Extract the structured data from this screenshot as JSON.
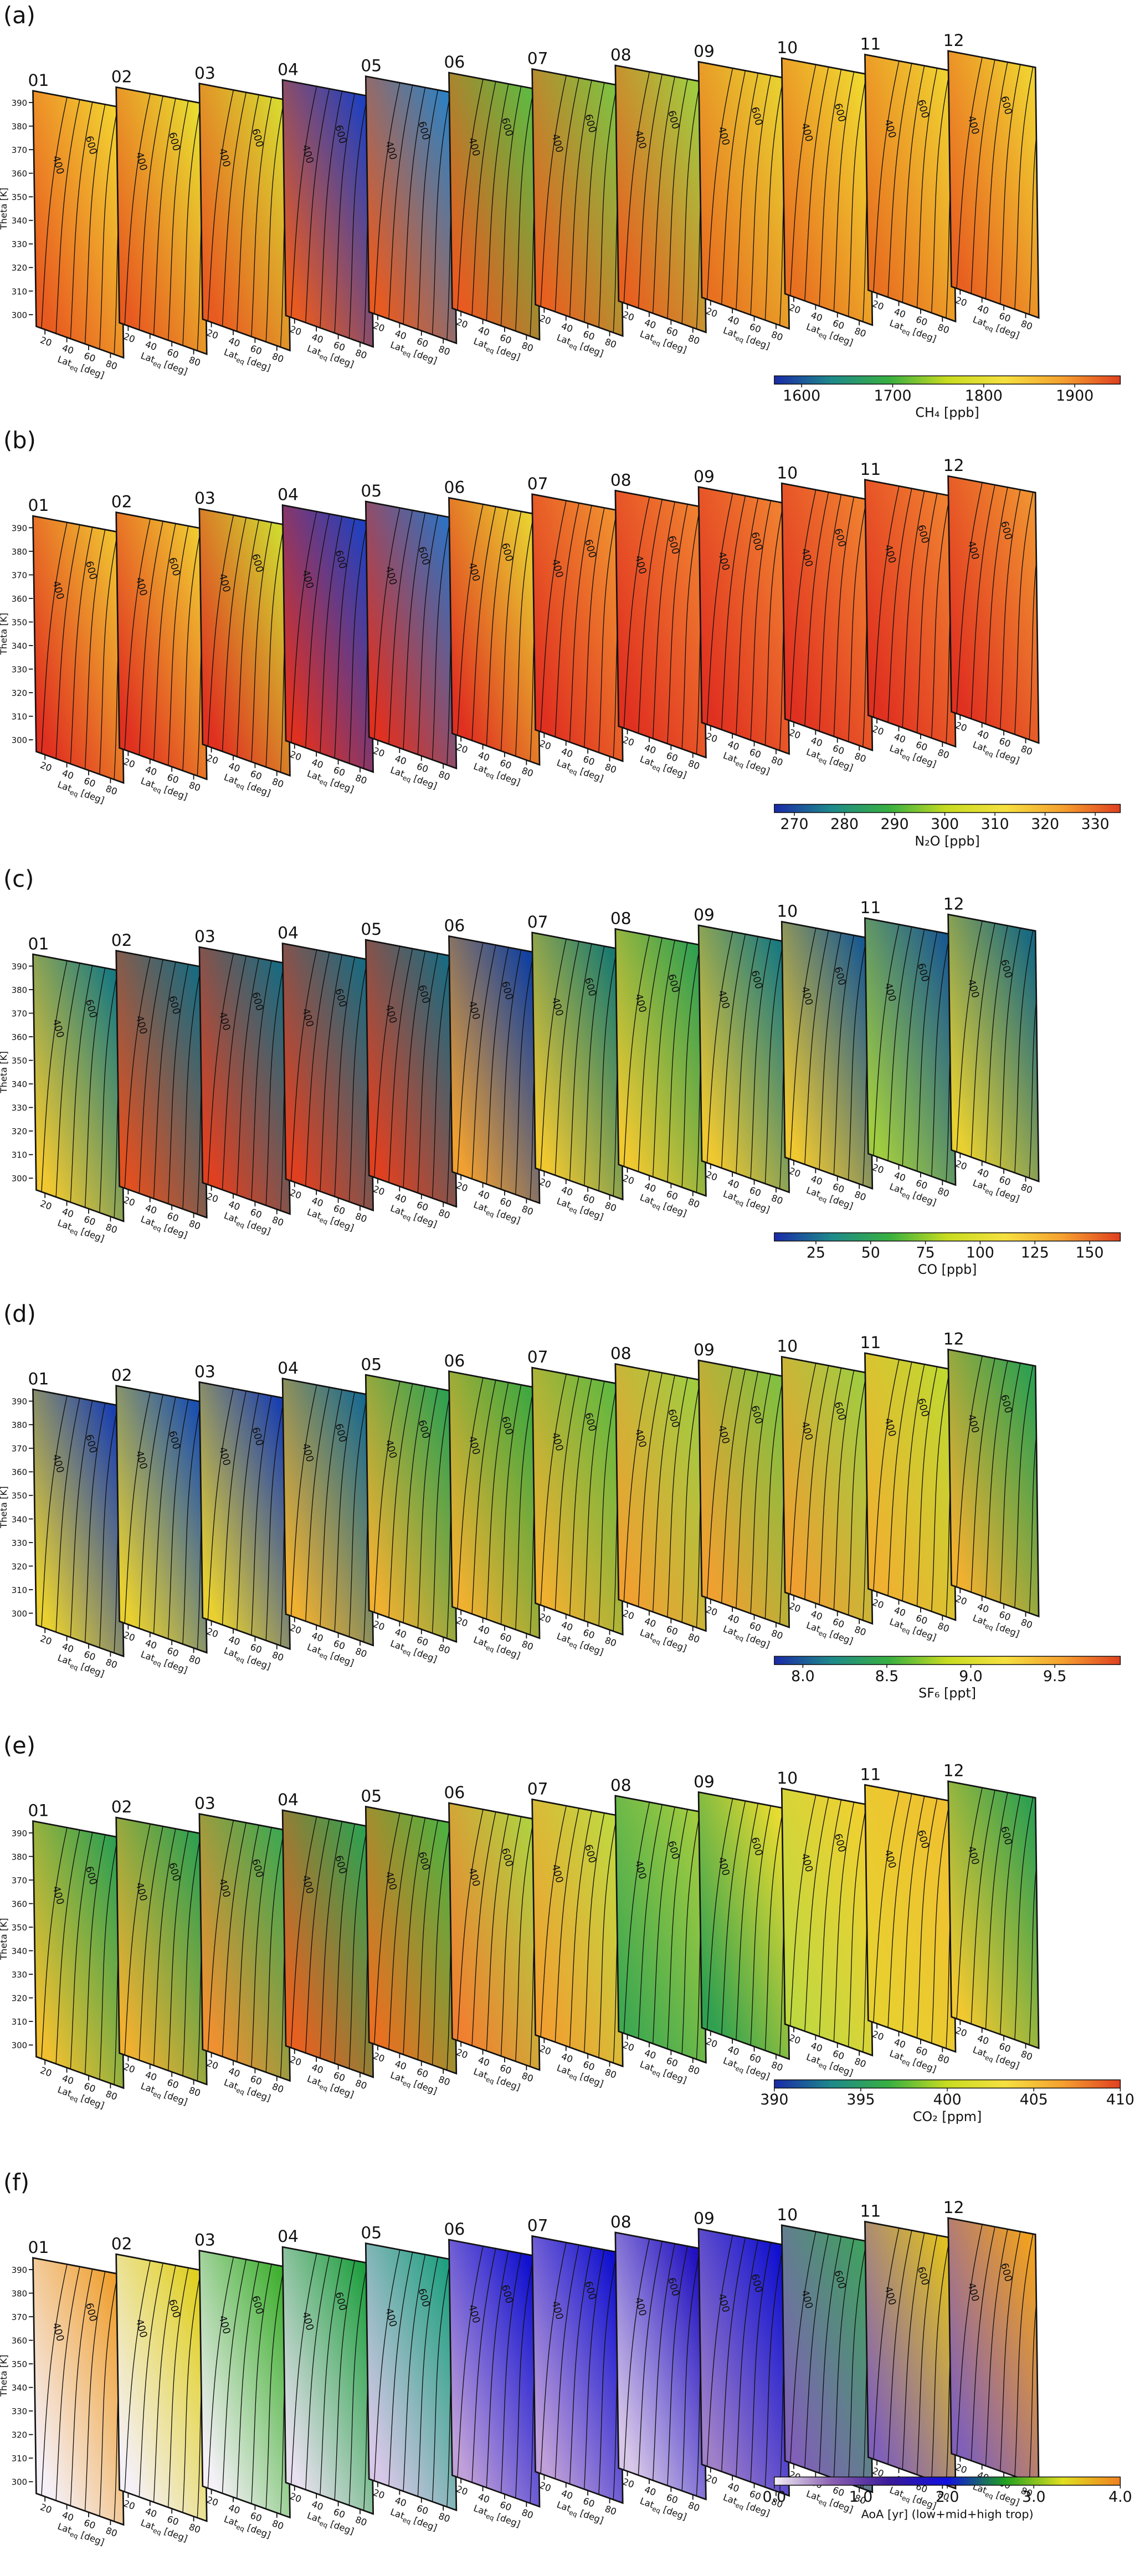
{
  "chart_data": {
    "type": "contour",
    "months": [
      "01",
      "02",
      "03",
      "04",
      "05",
      "06",
      "07",
      "08",
      "09",
      "10",
      "11",
      "12"
    ],
    "y_label": "Theta [K]",
    "ylim": [
      295,
      395
    ],
    "yticks": [
      300,
      310,
      320,
      330,
      340,
      350,
      360,
      370,
      380,
      390
    ],
    "x_label": "Lat",
    "x_label_sub": "eq",
    "x_label_unit": "[deg]",
    "xlim": [
      12,
      92
    ],
    "xticks": [
      20,
      40,
      60,
      80
    ],
    "contour_labels": [
      "400",
      "600"
    ],
    "panels": [
      {
        "label": "(a)",
        "colorbar": {
          "label": "CH₄ [ppb]",
          "lim": [
            1570,
            1950
          ],
          "ticks": [
            1600,
            1700,
            1800,
            1900
          ],
          "colors": [
            "#1a2aa8",
            "#1e8a8a",
            "#38b040",
            "#c8dc20",
            "#f5e040",
            "#f5a030",
            "#e04020"
          ]
        },
        "month_colors": [
          [
            "#e85a20",
            "#f2d030"
          ],
          [
            "#e85a20",
            "#e8dc30"
          ],
          [
            "#e85a20",
            "#d8d830"
          ],
          [
            "#e85a20",
            "#2040c0"
          ],
          [
            "#e85a20",
            "#3080c0"
          ],
          [
            "#e85a20",
            "#60b840"
          ],
          [
            "#e86020",
            "#80c040"
          ],
          [
            "#e86020",
            "#a0cc40"
          ],
          [
            "#e87020",
            "#e8d030"
          ],
          [
            "#e87020",
            "#f0d830"
          ],
          [
            "#e87020",
            "#f0d030"
          ],
          [
            "#e86020",
            "#f0d030"
          ]
        ]
      },
      {
        "label": "(b)",
        "colorbar": {
          "label": "N₂O [ppb]",
          "lim": [
            266,
            335
          ],
          "ticks": [
            270,
            280,
            290,
            300,
            310,
            320,
            330
          ],
          "colors": [
            "#1a2aa8",
            "#1e8a8a",
            "#38b040",
            "#c8dc20",
            "#f5e040",
            "#f5a030",
            "#e04020"
          ]
        },
        "month_colors": [
          [
            "#e03020",
            "#f0c030"
          ],
          [
            "#e03020",
            "#f0c830"
          ],
          [
            "#e03020",
            "#d0d830"
          ],
          [
            "#e03020",
            "#2040c0"
          ],
          [
            "#e03020",
            "#3070c0"
          ],
          [
            "#e03020",
            "#e8d030"
          ],
          [
            "#e03020",
            "#f09030"
          ],
          [
            "#e03020",
            "#f08030"
          ],
          [
            "#e03020",
            "#f08030"
          ],
          [
            "#e03020",
            "#f08030"
          ],
          [
            "#e03020",
            "#f08030"
          ],
          [
            "#e03020",
            "#f09030"
          ]
        ]
      },
      {
        "label": "(c)",
        "colorbar": {
          "label": "CO [ppb]",
          "lim": [
            6,
            164
          ],
          "ticks": [
            25,
            50,
            75,
            100,
            125,
            150
          ],
          "colors": [
            "#1a2aa8",
            "#1e8a8a",
            "#38b040",
            "#c8dc20",
            "#f5e040",
            "#f5a030",
            "#e04020"
          ]
        },
        "month_colors": [
          [
            "#f0c830",
            "#1a7a80"
          ],
          [
            "#e05020",
            "#1a6a80"
          ],
          [
            "#e04020",
            "#1a6a80"
          ],
          [
            "#e04020",
            "#1a6a80"
          ],
          [
            "#e04020",
            "#1a6a80"
          ],
          [
            "#f0a030",
            "#1040a0"
          ],
          [
            "#f0c830",
            "#1a7a70"
          ],
          [
            "#f0c830",
            "#30a050"
          ],
          [
            "#f0c830",
            "#1a7a80"
          ],
          [
            "#f0c830",
            "#1a5a90"
          ],
          [
            "#a0cc40",
            "#1a5a90"
          ],
          [
            "#e8d030",
            "#1a6a80"
          ]
        ]
      },
      {
        "label": "(d)",
        "colorbar": {
          "label": "SF₆ [ppt]",
          "lim": [
            7.83,
            9.89
          ],
          "ticks": [
            {
              "value": 8,
              "label": "8.0"
            },
            8.5,
            {
              "value": 9,
              "label": "9.0"
            },
            9.5
          ],
          "colors": [
            "#1a2aa8",
            "#1e8a8a",
            "#38b040",
            "#c8dc20",
            "#f5e040",
            "#f5a030",
            "#e04020"
          ]
        },
        "month_colors": [
          [
            "#e8d030",
            "#1a40b0"
          ],
          [
            "#e8d030",
            "#1a50b0"
          ],
          [
            "#e8d030",
            "#1a40b0"
          ],
          [
            "#f0b030",
            "#1a6a90"
          ],
          [
            "#f0b030",
            "#30a050"
          ],
          [
            "#f0b030",
            "#40a840"
          ],
          [
            "#f0b030",
            "#60b840"
          ],
          [
            "#f0a030",
            "#a0cc40"
          ],
          [
            "#f0a030",
            "#80c040"
          ],
          [
            "#f0a030",
            "#a0cc40"
          ],
          [
            "#f0b030",
            "#c0d830"
          ],
          [
            "#f0b030",
            "#30a050"
          ]
        ]
      },
      {
        "label": "(e)",
        "colorbar": {
          "label": "CO₂ [ppm]",
          "lim": [
            390,
            410
          ],
          "ticks": [
            390,
            395,
            400,
            405,
            410
          ],
          "colors": [
            "#1a2aa8",
            "#1e8a8a",
            "#38b040",
            "#c8dc20",
            "#f5e040",
            "#f5a030",
            "#e04020"
          ]
        },
        "month_colors": [
          [
            "#f0c030",
            "#30a050"
          ],
          [
            "#f0b030",
            "#30a050"
          ],
          [
            "#f09030",
            "#40a850"
          ],
          [
            "#e86020",
            "#30a050"
          ],
          [
            "#e87020",
            "#50b040"
          ],
          [
            "#f08030",
            "#b0d040"
          ],
          [
            "#f0a030",
            "#c0d840"
          ],
          [
            "#40a850",
            "#a0cc40"
          ],
          [
            "#30a050",
            "#e8dc30"
          ],
          [
            "#c0d840",
            "#f0d030"
          ],
          [
            "#e8d030",
            "#f0c030"
          ],
          [
            "#f0c830",
            "#30a050"
          ]
        ]
      },
      {
        "label": "(f)",
        "colorbar": {
          "label": "AoA [yr] (low+mid+high trop)",
          "lim": [
            0,
            4
          ],
          "ticks": [
            {
              "value": 0,
              "label": "0.0"
            },
            {
              "value": 1,
              "label": "1.0"
            },
            {
              "value": 2,
              "label": "2.0"
            },
            {
              "value": 3,
              "label": "3.0"
            },
            {
              "value": 4,
              "label": "4.0"
            }
          ],
          "colors": [
            "#f5f0f8",
            "#8a60b0",
            "#3a1a9a",
            "#1010e0",
            "#20a020",
            "#e0e020",
            "#f08020"
          ]
        },
        "month_colors": [
          [
            "#f5f0f8",
            "#f0a030"
          ],
          [
            "#f5f0f8",
            "#e0d020"
          ],
          [
            "#f5f0f8",
            "#40b030"
          ],
          [
            "#e8e0f0",
            "#20a040"
          ],
          [
            "#d8c8e8",
            "#20a080"
          ],
          [
            "#c0a0d8",
            "#1010d0"
          ],
          [
            "#c0a0d8",
            "#1010d0"
          ],
          [
            "#d8c8e8",
            "#2010c0"
          ],
          [
            "#a080c8",
            "#1010d0"
          ],
          [
            "#8060b8",
            "#40a060"
          ],
          [
            "#8060b8",
            "#e0c020"
          ],
          [
            "#8060b8",
            "#f0a020"
          ]
        ]
      }
    ]
  }
}
